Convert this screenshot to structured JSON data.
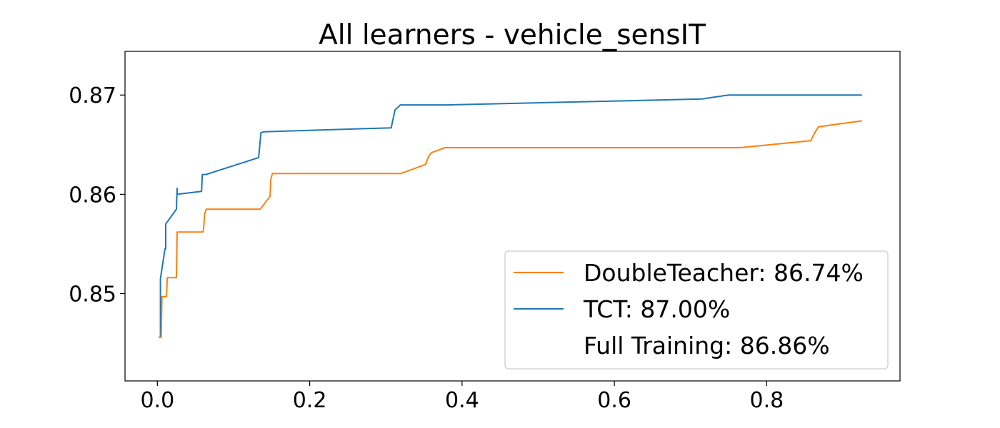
{
  "chart_data": {
    "type": "line",
    "title": "All learners - vehicle_sensIT",
    "xlabel": "",
    "ylabel": "",
    "xlim": [
      -0.0425,
      0.975
    ],
    "ylim": [
      0.8412,
      0.8744
    ],
    "x_ticks": [
      0.0,
      0.2,
      0.4,
      0.6,
      0.8
    ],
    "x_tick_labels": [
      "0.0",
      "0.2",
      "0.4",
      "0.6",
      "0.8"
    ],
    "y_ticks": [
      0.85,
      0.86,
      0.87
    ],
    "y_tick_labels": [
      "0.85",
      "0.86",
      "0.87"
    ],
    "grid": false,
    "legend_position": "lower-right",
    "series": [
      {
        "name": "DoubleTeacher: 86.74%",
        "color": "#ff7f0e",
        "points": [
          [
            0.003,
            0.8456
          ],
          [
            0.005,
            0.8456
          ],
          [
            0.006,
            0.8497
          ],
          [
            0.012,
            0.8497
          ],
          [
            0.013,
            0.8516
          ],
          [
            0.025,
            0.8516
          ],
          [
            0.026,
            0.8562
          ],
          [
            0.06,
            0.8562
          ],
          [
            0.061,
            0.8568
          ],
          [
            0.062,
            0.858
          ],
          [
            0.064,
            0.8585
          ],
          [
            0.135,
            0.8585
          ],
          [
            0.148,
            0.8598
          ],
          [
            0.149,
            0.8615
          ],
          [
            0.151,
            0.8621
          ],
          [
            0.32,
            0.8621
          ],
          [
            0.352,
            0.863
          ],
          [
            0.356,
            0.8638
          ],
          [
            0.36,
            0.8642
          ],
          [
            0.378,
            0.8647
          ],
          [
            0.765,
            0.8647
          ],
          [
            0.858,
            0.8654
          ],
          [
            0.863,
            0.8662
          ],
          [
            0.868,
            0.8668
          ],
          [
            0.925,
            0.8674
          ]
        ]
      },
      {
        "name": "TCT: 87.00%",
        "color": "#1f77b4",
        "points": [
          [
            0.002,
            0.8456
          ],
          [
            0.004,
            0.8456
          ],
          [
            0.004,
            0.8515
          ],
          [
            0.01,
            0.8545
          ],
          [
            0.011,
            0.8545
          ],
          [
            0.011,
            0.857
          ],
          [
            0.025,
            0.8585
          ],
          [
            0.026,
            0.8606
          ],
          [
            0.026,
            0.86
          ],
          [
            0.058,
            0.8603
          ],
          [
            0.059,
            0.862
          ],
          [
            0.064,
            0.862
          ],
          [
            0.133,
            0.8637
          ],
          [
            0.136,
            0.8662
          ],
          [
            0.14,
            0.8663
          ],
          [
            0.307,
            0.8667
          ],
          [
            0.312,
            0.8685
          ],
          [
            0.315,
            0.8687
          ],
          [
            0.319,
            0.869
          ],
          [
            0.38,
            0.869
          ],
          [
            0.715,
            0.8696
          ],
          [
            0.75,
            0.87
          ],
          [
            0.925,
            0.87
          ]
        ]
      },
      {
        "name": "Full Training: 86.86%",
        "color": "#ffffff",
        "points": []
      }
    ]
  }
}
